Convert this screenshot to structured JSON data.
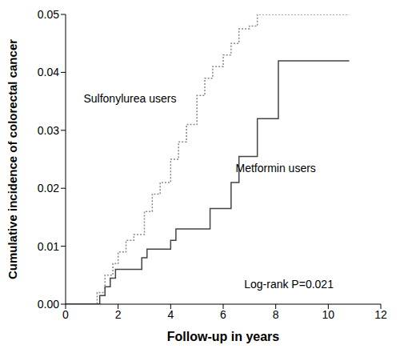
{
  "chart_data": {
    "type": "line",
    "x_label": "Follow-up in years",
    "y_label": "Cumulative incidence of colorectal cancer",
    "xlim": [
      0,
      12
    ],
    "xticks": [
      0,
      2,
      4,
      6,
      8,
      10,
      12
    ],
    "ylim": [
      0,
      0.05
    ],
    "yticks": [
      {
        "value": 0,
        "label": "0.00"
      },
      {
        "value": 0.01,
        "label": "0.01"
      },
      {
        "value": 0.02,
        "label": "0.02"
      },
      {
        "value": 0.03,
        "label": "0.03"
      },
      {
        "value": 0.04,
        "label": "0.04"
      },
      {
        "value": 0.05,
        "label": "0.05"
      }
    ],
    "series": [
      {
        "name": "Sulfonylurea users",
        "color": "#888888",
        "line_style": "dotted",
        "label_position": [
          2.45,
          0.0355
        ],
        "x": [
          0,
          1.0,
          1.2,
          1.5,
          1.8,
          2.0,
          2.3,
          2.6,
          3.0,
          3.3,
          3.6,
          4.0,
          4.3,
          4.6,
          5.0,
          5.3,
          5.6,
          6.0,
          6.3,
          6.6,
          7.0,
          7.3,
          10.8
        ],
        "values": [
          0,
          0,
          0.002,
          0.005,
          0.007,
          0.009,
          0.011,
          0.012,
          0.016,
          0.019,
          0.021,
          0.025,
          0.028,
          0.031,
          0.036,
          0.039,
          0.041,
          0.043,
          0.045,
          0.0475,
          0.048,
          0.05,
          0.05
        ]
      },
      {
        "name": "Metformin users",
        "color": "#444444",
        "line_style": "solid",
        "label_position": [
          8.0,
          0.0235
        ],
        "x": [
          0,
          1.3,
          1.5,
          1.7,
          1.9,
          2.9,
          3.1,
          4.0,
          4.2,
          5.5,
          6.3,
          6.6,
          7.3,
          8.1,
          10.8
        ],
        "values": [
          0,
          0.0015,
          0.003,
          0.0045,
          0.006,
          0.008,
          0.0095,
          0.011,
          0.013,
          0.0165,
          0.021,
          0.0255,
          0.032,
          0.042,
          0.042
        ]
      }
    ],
    "annotations": [
      {
        "text": "Log-rank P=0.021",
        "x": 8.5,
        "y": 0.0035
      }
    ]
  }
}
